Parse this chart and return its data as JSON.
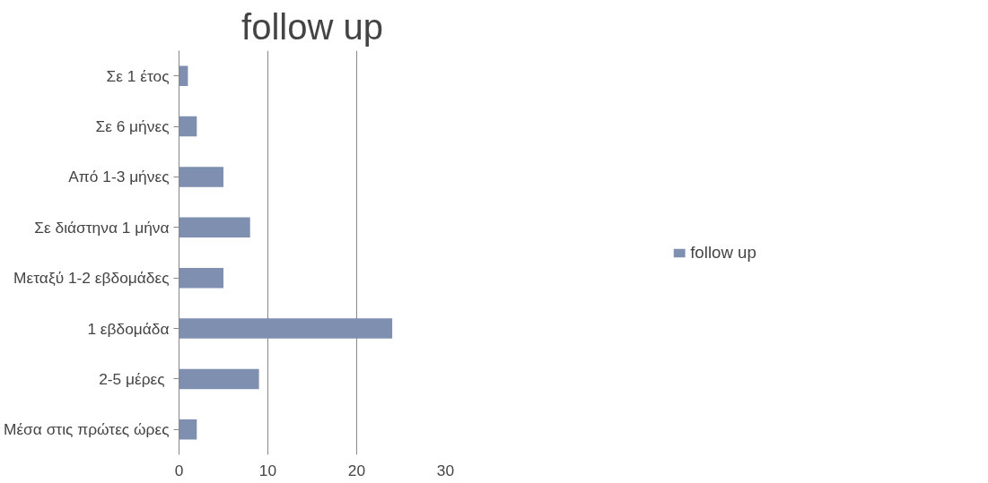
{
  "chart_data": {
    "type": "bar",
    "orientation": "horizontal",
    "title": "follow up",
    "categories": [
      "Σε 1 έτος",
      "Σε 6 μήνες",
      "Από 1-3 μήνες",
      "Σε διάστηνα 1 μήνα",
      "Μεταξύ 1-2 εβδομάδες",
      "1 εβδομάδα",
      "2-5  μέρες",
      "Μέσα στις πρώτες ώρες"
    ],
    "series": [
      {
        "name": "follow up",
        "color": "#7f8fb0",
        "values": [
          1,
          2,
          5,
          8,
          5,
          24,
          9,
          2
        ]
      }
    ],
    "xlim": [
      0,
      30
    ],
    "xticks": [
      0,
      10,
      20,
      30
    ],
    "grid": "x",
    "legend": "right"
  }
}
